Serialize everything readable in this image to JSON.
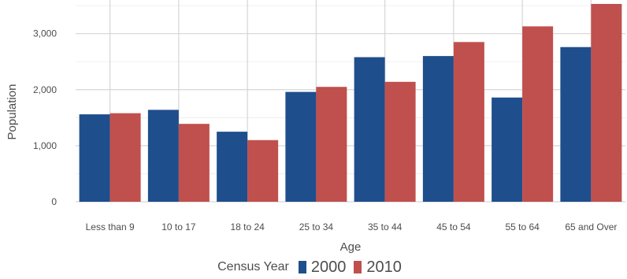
{
  "chart_data": {
    "type": "bar",
    "title": "",
    "xlabel": "Age",
    "ylabel": "Population",
    "categories": [
      "Less than 9",
      "10 to 17",
      "18 to 24",
      "25 to 34",
      "35 to 44",
      "45 to 54",
      "55 to 64",
      "65 and Over"
    ],
    "series": [
      {
        "name": "2000",
        "color": "#1f4e8c",
        "values": [
          1560,
          1640,
          1250,
          1960,
          2580,
          2600,
          1860,
          2760
        ]
      },
      {
        "name": "2010",
        "color": "#c0504d",
        "values": [
          1580,
          1390,
          1100,
          2050,
          2140,
          2850,
          3130,
          3530
        ]
      }
    ],
    "ylim": [
      0,
      3600
    ],
    "yticks": [
      0,
      1000,
      2000,
      3000
    ],
    "ytick_labels": [
      "0",
      "1,000",
      "2,000",
      "3,000"
    ],
    "grid": true,
    "legend": {
      "title": "Census Year",
      "placement": "bottom"
    }
  }
}
